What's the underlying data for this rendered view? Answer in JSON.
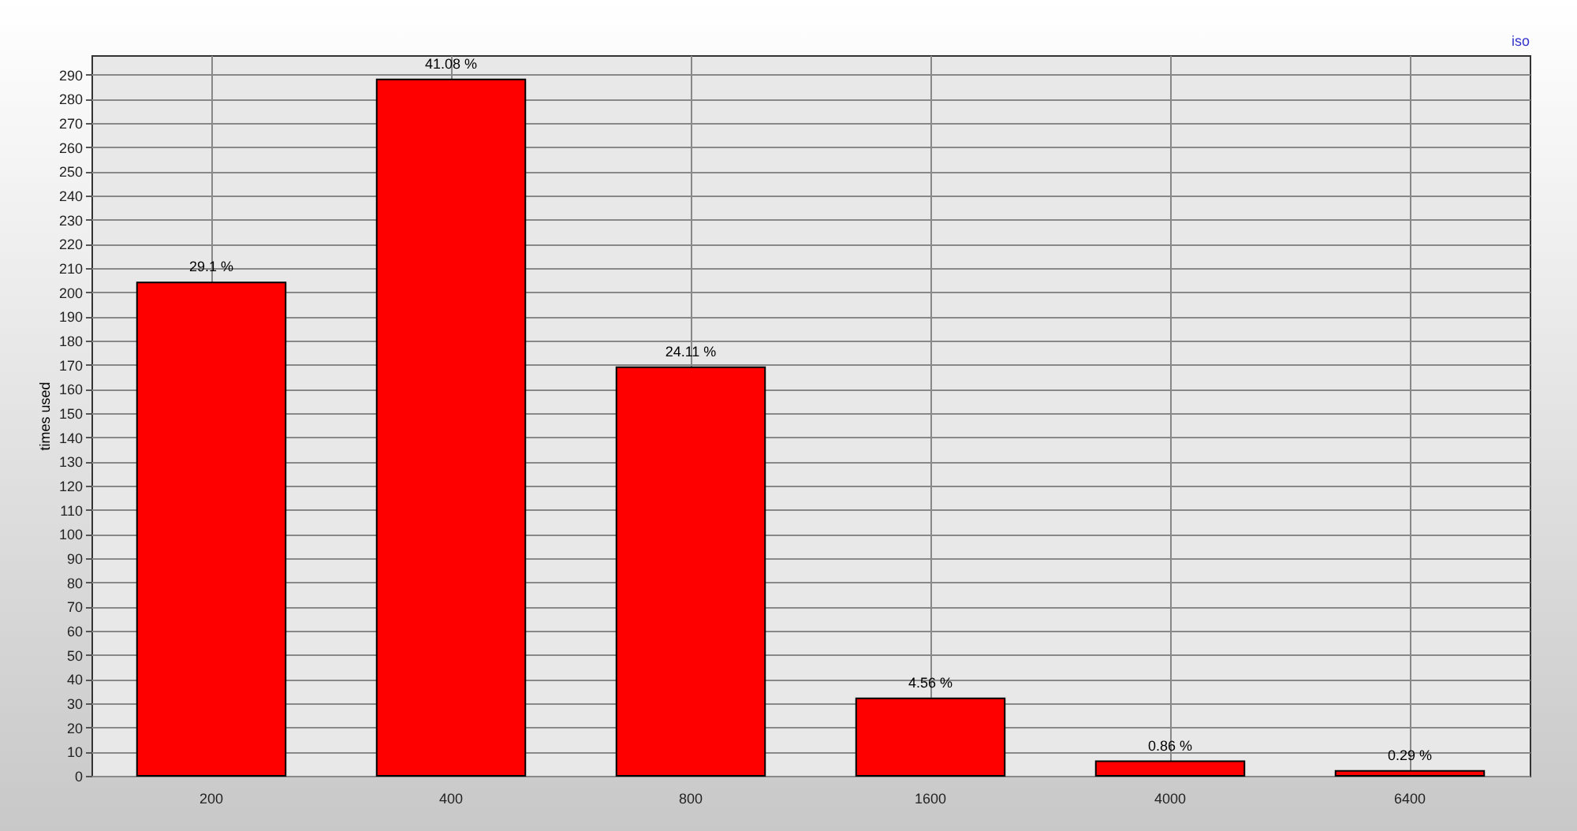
{
  "chart_data": {
    "type": "bar",
    "ylabel": "times used",
    "annotations": [
      "iso",
      {
        "text": "29.1 %",
        "x": "200",
        "y": 204
      },
      {
        "text": "41.08 %",
        "x": "400",
        "y": 288
      },
      {
        "text": "24.11 %",
        "x": "800",
        "y": 169
      },
      {
        "text": "4.56 %",
        "x": "1600",
        "y": 32
      },
      {
        "text": "0.86 %",
        "x": "4000",
        "y": 6
      },
      {
        "text": "0.29 %",
        "x": "6400",
        "y": 2
      }
    ],
    "categories": [
      "200",
      "400",
      "800",
      "1600",
      "4000",
      "6400"
    ],
    "values": [
      204,
      288,
      169,
      32,
      6,
      2
    ],
    "color": "#ff0000",
    "ylim": [
      0,
      298
    ],
    "yticks": [
      0,
      10,
      20,
      30,
      40,
      50,
      60,
      70,
      80,
      90,
      100,
      110,
      120,
      130,
      140,
      150,
      160,
      170,
      180,
      190,
      200,
      210,
      220,
      230,
      240,
      250,
      260,
      270,
      280,
      290
    ],
    "grid": true
  }
}
